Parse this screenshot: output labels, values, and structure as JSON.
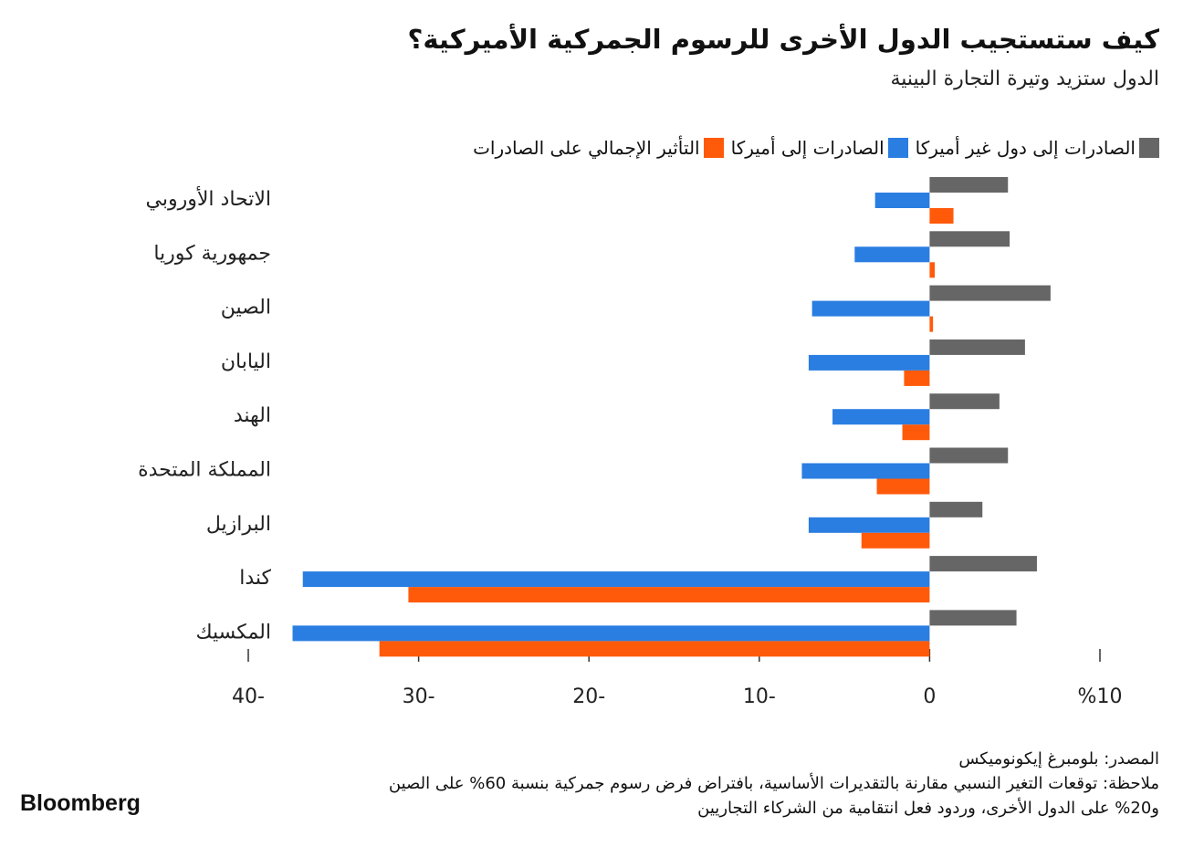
{
  "chart_data": {
    "type": "hbar",
    "title": "كيف ستستجيب الدول الأخرى للرسوم الجمركية الأميركية؟",
    "subtitle": "الدول ستزيد وتيرة التجارة البينية",
    "categories": [
      "الاتحاد الأوروبي",
      "جمهورية كوريا",
      "الصين",
      "اليابان",
      "الهند",
      "المملكة المتحدة",
      "البرازيل",
      "كندا",
      "المكسيك"
    ],
    "series": [
      {
        "name": "الصادرات إلى دول غير أميركا",
        "color": "#666666",
        "values": [
          4.6,
          4.7,
          7.1,
          5.6,
          4.1,
          4.6,
          3.1,
          6.3,
          5.1
        ]
      },
      {
        "name": "الصادرات إلى أميركا",
        "color": "#2a7de1",
        "values": [
          -3.2,
          -4.4,
          -6.9,
          -7.1,
          -5.7,
          -7.5,
          -7.1,
          -36.8,
          -37.4
        ]
      },
      {
        "name": "التأثير الإجمالي على الصادرات",
        "color": "#ff5a0a",
        "values": [
          1.4,
          0.3,
          0.2,
          -1.5,
          -1.6,
          -3.1,
          -4.0,
          -30.6,
          -32.3
        ]
      }
    ],
    "xlim": [
      -40,
      10
    ],
    "xticks": [
      {
        "value": -40,
        "label": "40-"
      },
      {
        "value": -30,
        "label": "30-"
      },
      {
        "value": -20,
        "label": "20-"
      },
      {
        "value": -10,
        "label": "10-"
      },
      0,
      {
        "value": 10,
        "label": "%10"
      }
    ],
    "source": "المصدر: بلومبرغ إيكونوميكس",
    "note": [
      "ملاحظة: توقعات التغير النسبي مقارنة بالتقديرات الأساسية، بافتراض فرض رسوم جمركية بنسبة 60% على الصين",
      "و20% على الدول الأخرى، وردود فعل انتقامية من الشركاء التجاريين"
    ],
    "logo": "Bloomberg"
  }
}
